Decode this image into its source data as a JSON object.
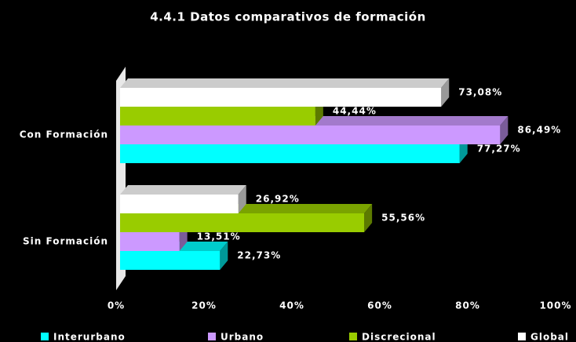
{
  "chart_data": {
    "type": "bar",
    "orientation": "horizontal",
    "title": "4.4.1 Datos comparativos de formación",
    "categories": [
      "Con Formación",
      "Sin Formación"
    ],
    "series": [
      {
        "name": "Interurbano",
        "color": "#00ffff",
        "values": [
          77.27,
          22.73
        ],
        "value_labels": [
          "77,27%",
          "22,73%"
        ]
      },
      {
        "name": "Urbano",
        "color": "#cc99ff",
        "values": [
          86.49,
          13.51
        ],
        "value_labels": [
          "86,49%",
          "13,51%"
        ]
      },
      {
        "name": "Discrecional",
        "color": "#99cc00",
        "values": [
          44.44,
          55.56
        ],
        "value_labels": [
          "44,44%",
          "55,56%"
        ]
      },
      {
        "name": "Global",
        "color": "#ffffff",
        "values": [
          73.08,
          26.92
        ],
        "value_labels": [
          "73,08%",
          "26,92%"
        ]
      }
    ],
    "xlim": [
      0,
      100
    ],
    "xticks": [
      {
        "value": 0,
        "label": "0%"
      },
      {
        "value": 20,
        "label": "20%"
      },
      {
        "value": 40,
        "label": "40%"
      },
      {
        "value": 60,
        "label": "60%"
      },
      {
        "value": 80,
        "label": "80%"
      },
      {
        "value": 100,
        "label": "100%"
      }
    ],
    "legend": "bottom"
  }
}
